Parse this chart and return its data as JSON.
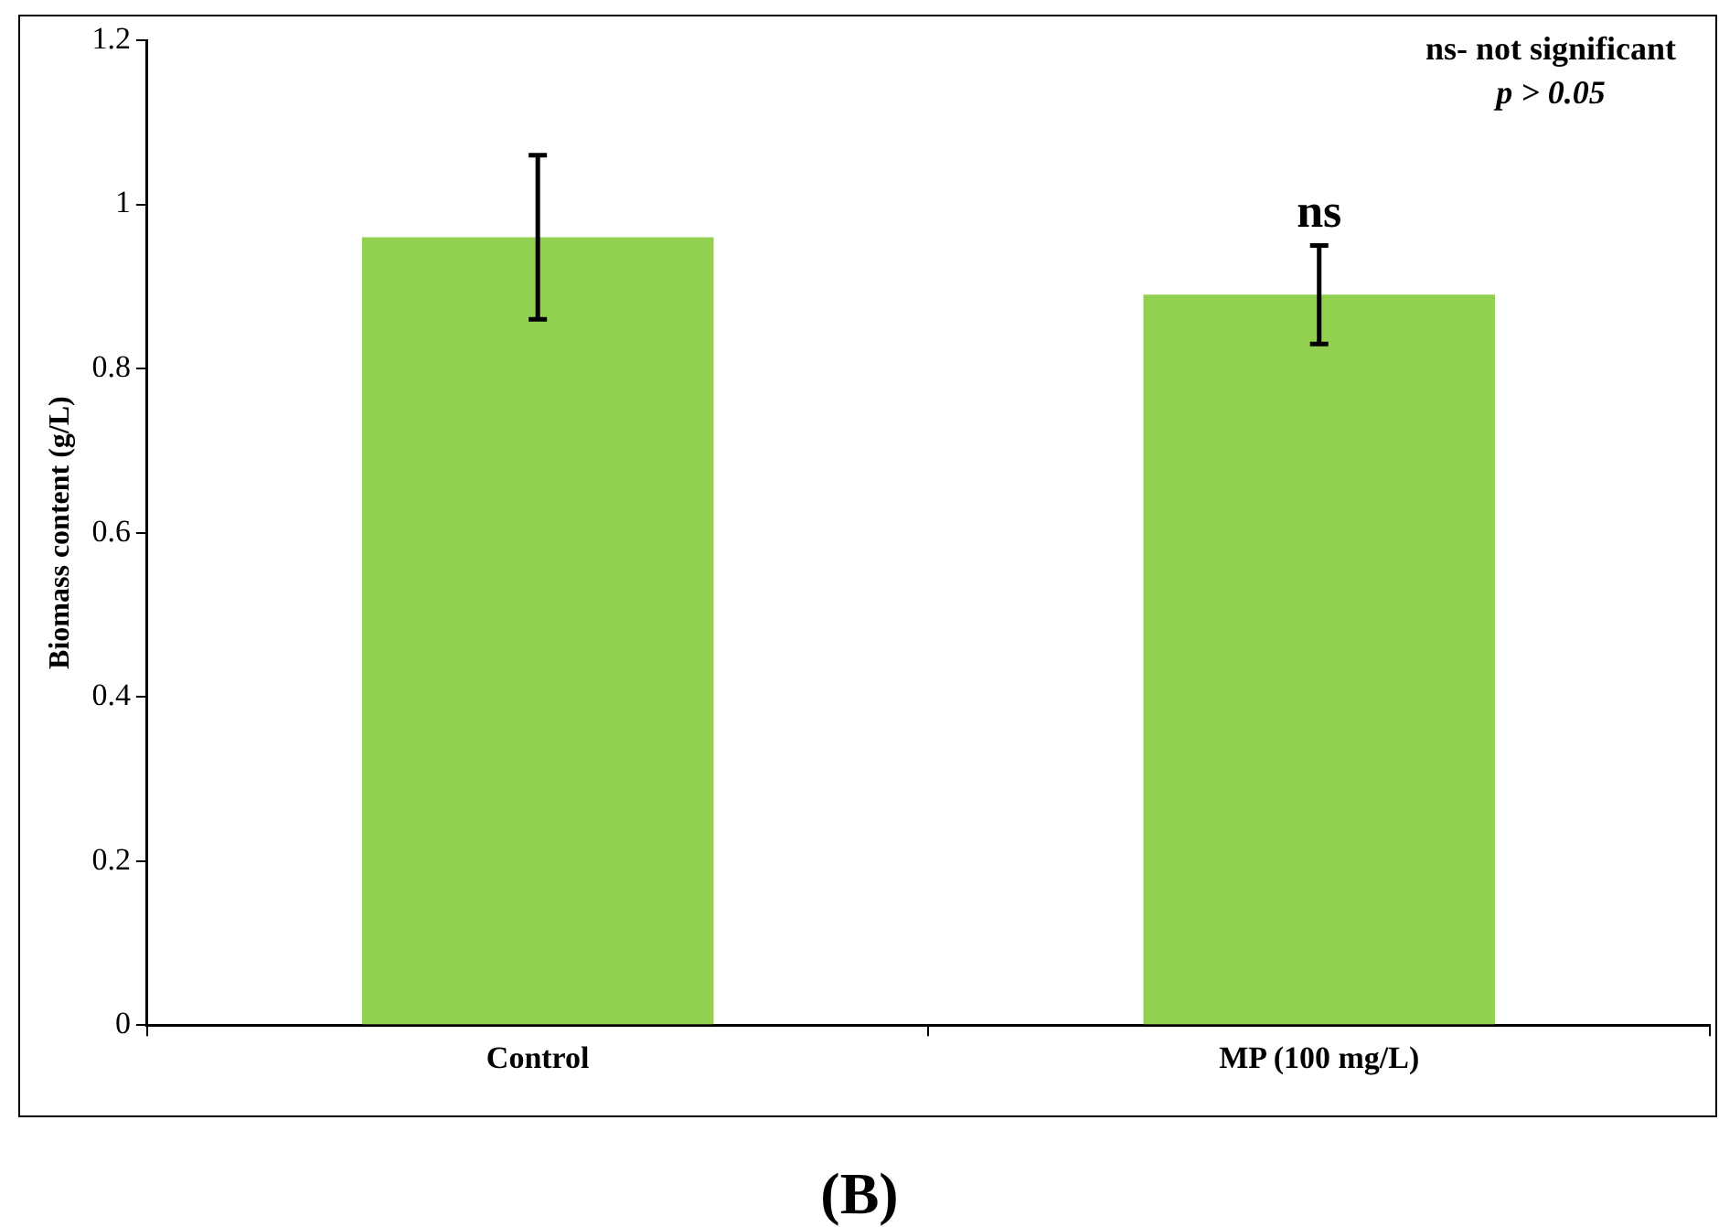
{
  "chart_data": {
    "type": "bar",
    "ylabel": "Biomass content (g/L)",
    "categories": [
      "Control",
      "MP (100 mg/L)"
    ],
    "values": [
      0.96,
      0.89
    ],
    "errors": [
      0.1,
      0.06
    ],
    "color": "#92d050",
    "ylim": [
      0,
      1.2
    ],
    "yticks": [
      0,
      0.2,
      0.4,
      0.6,
      0.8,
      1,
      1.2
    ],
    "grid": false,
    "legend": false,
    "annotations": [
      "ns- not significant",
      "p > 0.05",
      {
        "text": "ns",
        "x": "MP (100 mg/L)",
        "y": 0.95
      },
      "(B)"
    ]
  }
}
